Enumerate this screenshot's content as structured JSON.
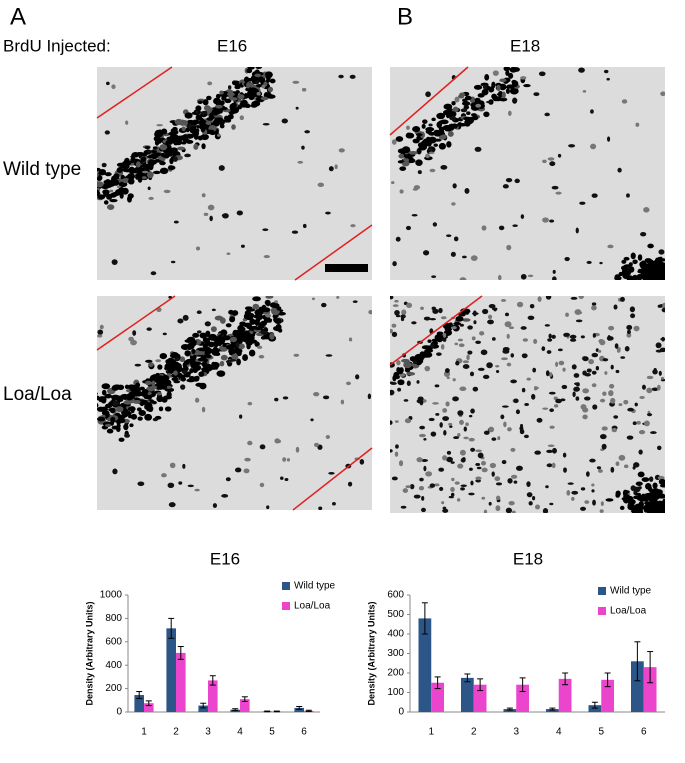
{
  "figure": {
    "panel_labels": [
      "A",
      "B"
    ],
    "injected_label": "BrdU Injected:",
    "ages": [
      "E16",
      "E18"
    ],
    "row_labels": [
      "Wild type",
      "Loa/Loa"
    ]
  },
  "chart_data": [
    {
      "type": "bar",
      "title": "E16",
      "y_label": "Density (Arbitrary Units)",
      "categories": [
        "1",
        "2",
        "3",
        "4",
        "5",
        "6"
      ],
      "series": [
        {
          "name": "Wild type",
          "color": "#2b5687",
          "values": [
            145,
            715,
            55,
            20,
            5,
            35
          ],
          "errors": [
            30,
            85,
            20,
            8,
            3,
            12
          ]
        },
        {
          "name": "Loa/Loa",
          "color": "#ea45cc",
          "values": [
            75,
            505,
            270,
            110,
            5,
            10
          ],
          "errors": [
            20,
            55,
            40,
            20,
            3,
            5
          ]
        }
      ],
      "ylim": [
        0,
        1000
      ],
      "yticks": [
        0,
        200,
        400,
        600,
        800,
        1000
      ],
      "legend": "upper right"
    },
    {
      "type": "bar",
      "title": "E18",
      "y_label": "Density (Arbitrary Units)",
      "categories": [
        "1",
        "2",
        "3",
        "4",
        "5",
        "6"
      ],
      "series": [
        {
          "name": "Wild type",
          "color": "#2b5687",
          "values": [
            480,
            175,
            15,
            15,
            35,
            260
          ],
          "errors": [
            80,
            20,
            5,
            5,
            15,
            100
          ]
        },
        {
          "name": "Loa/Loa",
          "color": "#ea45cc",
          "values": [
            150,
            140,
            140,
            170,
            165,
            230
          ],
          "errors": [
            30,
            30,
            35,
            30,
            35,
            80
          ]
        }
      ],
      "ylim": [
        0,
        600
      ],
      "yticks": [
        0,
        100,
        200,
        300,
        400,
        500,
        600
      ],
      "legend": "upper right"
    }
  ]
}
